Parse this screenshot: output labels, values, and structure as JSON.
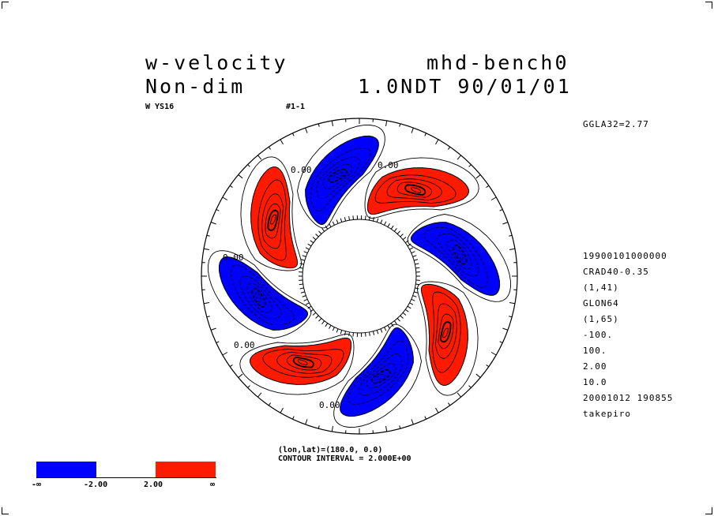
{
  "header": {
    "variable": "w-velocity",
    "experiment": "mhd-bench0",
    "units": "Non-dim",
    "time": "1.0NDT 90/01/01",
    "code": "W YS16",
    "frame": "#1-1"
  },
  "side_top": "GGLA32=2.77",
  "side_info": [
    "19900101000000",
    "CRAD40-0.35",
    "(1,41)",
    "GLON64",
    "(1,65)",
    "-100.",
    "100.",
    "2.00",
    "10.0",
    "20001012 190855",
    "takepiro"
  ],
  "contour_label": "0.00",
  "footer": {
    "line1": "(lon,lat)=(180.0, 0.0)",
    "line2": "CONTOUR INTERVAL = 2.000E+00"
  },
  "colorbar": {
    "labels": [
      "-∞",
      "-2.00",
      "2.00",
      "∞"
    ],
    "negative_color": "#0000ff",
    "positive_color": "#ff1a00"
  },
  "plot_colors": {
    "negative": "#0000ff",
    "positive": "#ff1a00"
  }
}
